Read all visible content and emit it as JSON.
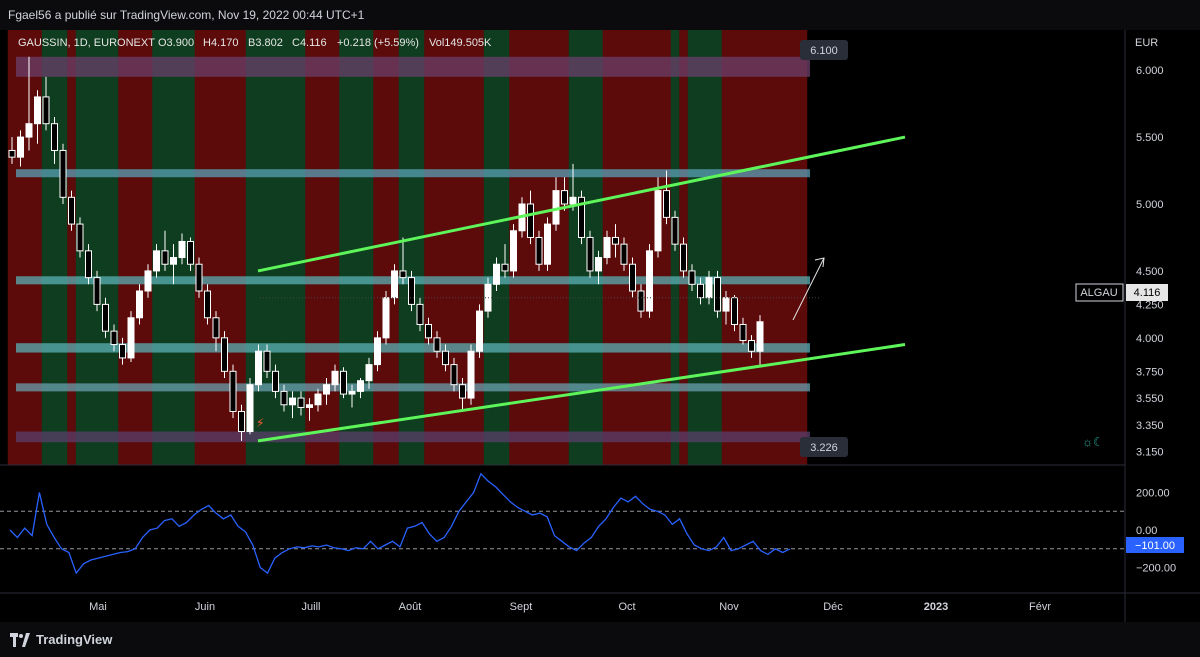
{
  "header": {
    "caption": "Fgael56 a publié sur TradingView.com, Nov 19, 2022 00:44 UTC+1"
  },
  "footer": {
    "brand": "TradingView"
  },
  "chart_data": {
    "type": "candlestick",
    "legend": {
      "symbol": "GAUSSIN, 1D, EURONEXT",
      "open": "O3.900",
      "high": "H4.170",
      "low": "B3.802",
      "close": "C4.116",
      "change": "+0.218 (+5.59%)",
      "volume": "Vol149.505K"
    },
    "currency": "EUR",
    "price_axis": {
      "ylim": [
        3.05,
        6.3
      ],
      "ticks": [
        "6.000",
        "5.500",
        "5.000",
        "4.500",
        "4.250",
        "4.000",
        "3.750",
        "3.550",
        "3.350",
        "3.150"
      ]
    },
    "price_labels": {
      "high_marker": "6.100",
      "low_marker": "3.226",
      "symbol_tag": "ALGAU",
      "last": "4.116"
    },
    "x_axis": {
      "labels": [
        "Mai",
        "Juin",
        "Juill",
        "Août",
        "Sept",
        "Oct",
        "Nov",
        "Déc",
        "2023",
        "Févr"
      ]
    },
    "oscillator": {
      "ylim": [
        -320,
        320
      ],
      "ticks": [
        "200.00",
        "0.00",
        "−200.00"
      ],
      "levels": [
        100,
        -100
      ],
      "last_label": "−101.00",
      "last_value": -101
    },
    "zones": [
      {
        "low": 5.95,
        "high": 6.1,
        "color": "#6b3f6b"
      },
      {
        "low": 5.2,
        "high": 5.26,
        "color": "#5a9fb5"
      },
      {
        "low": 4.4,
        "high": 4.46,
        "color": "#5ab0b5"
      },
      {
        "low": 3.89,
        "high": 3.96,
        "color": "#5ab0b5"
      },
      {
        "low": 3.6,
        "high": 3.66,
        "color": "#6aa0b0"
      },
      {
        "low": 3.22,
        "high": 3.3,
        "color": "#5a3f6b"
      }
    ],
    "channel": {
      "upper": [
        [
          2,
          4.5
        ],
        [
          96,
          5.5
        ]
      ],
      "lower": [
        [
          2,
          3.23
        ],
        [
          96,
          3.95
        ]
      ]
    },
    "regime_colors": {
      "bull": "#0f3d1f",
      "bear": "#5c0a0a"
    },
    "regimes": "rrrrgggrgggggrrrrgggggrrrrrrgggggggrrrrggggrrrgggrrrrrrrgggrrrrrrrggggrrrrrrrrgrggggrrrrrrrrrr",
    "series": [
      {
        "name": "price",
        "ohlc": [
          [
            5.4,
            5.5,
            5.3,
            5.35
          ],
          [
            5.35,
            5.55,
            5.28,
            5.5
          ],
          [
            5.5,
            6.1,
            5.4,
            5.6
          ],
          [
            5.6,
            5.85,
            5.45,
            5.8
          ],
          [
            5.8,
            5.95,
            5.55,
            5.6
          ],
          [
            5.6,
            5.65,
            5.3,
            5.4
          ],
          [
            5.4,
            5.45,
            5.0,
            5.05
          ],
          [
            5.05,
            5.1,
            4.8,
            4.85
          ],
          [
            4.85,
            4.9,
            4.6,
            4.65
          ],
          [
            4.65,
            4.7,
            4.4,
            4.45
          ],
          [
            4.45,
            4.5,
            4.2,
            4.25
          ],
          [
            4.25,
            4.3,
            4.0,
            4.05
          ],
          [
            4.05,
            4.1,
            3.9,
            3.95
          ],
          [
            3.95,
            4.0,
            3.8,
            3.85
          ],
          [
            3.85,
            4.2,
            3.82,
            4.15
          ],
          [
            4.15,
            4.4,
            4.1,
            4.35
          ],
          [
            4.35,
            4.55,
            4.3,
            4.5
          ],
          [
            4.5,
            4.7,
            4.45,
            4.65
          ],
          [
            4.65,
            4.8,
            4.5,
            4.55
          ],
          [
            4.55,
            4.7,
            4.4,
            4.6
          ],
          [
            4.6,
            4.78,
            4.55,
            4.72
          ],
          [
            4.72,
            4.75,
            4.5,
            4.55
          ],
          [
            4.55,
            4.6,
            4.3,
            4.35
          ],
          [
            4.35,
            4.4,
            4.1,
            4.15
          ],
          [
            4.15,
            4.2,
            3.9,
            4.0
          ],
          [
            4.0,
            4.05,
            3.7,
            3.75
          ],
          [
            3.75,
            3.8,
            3.4,
            3.45
          ],
          [
            3.45,
            3.5,
            3.23,
            3.3
          ],
          [
            3.3,
            3.7,
            3.28,
            3.65
          ],
          [
            3.65,
            3.95,
            3.6,
            3.9
          ],
          [
            3.9,
            3.95,
            3.7,
            3.75
          ],
          [
            3.75,
            3.8,
            3.55,
            3.6
          ],
          [
            3.6,
            3.65,
            3.45,
            3.5
          ],
          [
            3.5,
            3.6,
            3.4,
            3.55
          ],
          [
            3.55,
            3.6,
            3.42,
            3.48
          ],
          [
            3.48,
            3.55,
            3.38,
            3.5
          ],
          [
            3.5,
            3.62,
            3.45,
            3.58
          ],
          [
            3.58,
            3.7,
            3.5,
            3.65
          ],
          [
            3.65,
            3.8,
            3.6,
            3.75
          ],
          [
            3.75,
            3.78,
            3.55,
            3.58
          ],
          [
            3.58,
            3.65,
            3.48,
            3.6
          ],
          [
            3.6,
            3.7,
            3.55,
            3.68
          ],
          [
            3.68,
            3.85,
            3.62,
            3.8
          ],
          [
            3.8,
            4.05,
            3.75,
            4.0
          ],
          [
            4.0,
            4.35,
            3.95,
            4.3
          ],
          [
            4.3,
            4.55,
            4.25,
            4.5
          ],
          [
            4.5,
            4.75,
            4.4,
            4.45
          ],
          [
            4.45,
            4.5,
            4.2,
            4.25
          ],
          [
            4.25,
            4.3,
            4.05,
            4.1
          ],
          [
            4.1,
            4.15,
            3.95,
            4.0
          ],
          [
            4.0,
            4.05,
            3.85,
            3.9
          ],
          [
            3.9,
            3.95,
            3.75,
            3.8
          ],
          [
            3.8,
            3.85,
            3.6,
            3.65
          ],
          [
            3.65,
            3.7,
            3.45,
            3.55
          ],
          [
            3.55,
            3.95,
            3.5,
            3.9
          ],
          [
            3.9,
            4.25,
            3.85,
            4.2
          ],
          [
            4.2,
            4.45,
            4.15,
            4.4
          ],
          [
            4.4,
            4.6,
            4.35,
            4.55
          ],
          [
            4.55,
            4.7,
            4.45,
            4.5
          ],
          [
            4.5,
            4.85,
            4.45,
            4.8
          ],
          [
            4.8,
            5.05,
            4.75,
            5.0
          ],
          [
            5.0,
            5.1,
            4.7,
            4.75
          ],
          [
            4.75,
            4.8,
            4.5,
            4.55
          ],
          [
            4.55,
            4.9,
            4.5,
            4.85
          ],
          [
            4.85,
            5.2,
            4.8,
            5.1
          ],
          [
            5.1,
            5.2,
            4.95,
            5.0
          ],
          [
            5.0,
            5.3,
            4.95,
            5.05
          ],
          [
            5.05,
            5.1,
            4.7,
            4.75
          ],
          [
            4.75,
            4.8,
            4.45,
            4.5
          ],
          [
            4.5,
            4.65,
            4.4,
            4.6
          ],
          [
            4.6,
            4.8,
            4.55,
            4.75
          ],
          [
            4.75,
            4.85,
            4.6,
            4.7
          ],
          [
            4.7,
            4.75,
            4.5,
            4.55
          ],
          [
            4.55,
            4.6,
            4.3,
            4.35
          ],
          [
            4.35,
            4.4,
            4.15,
            4.2
          ],
          [
            4.2,
            4.7,
            4.15,
            4.65
          ],
          [
            4.65,
            5.2,
            4.6,
            5.1
          ],
          [
            5.1,
            5.25,
            4.85,
            4.9
          ],
          [
            4.9,
            4.95,
            4.65,
            4.7
          ],
          [
            4.7,
            4.75,
            4.45,
            4.5
          ],
          [
            4.5,
            4.55,
            4.35,
            4.4
          ],
          [
            4.4,
            4.45,
            4.25,
            4.3
          ],
          [
            4.3,
            4.5,
            4.25,
            4.45
          ],
          [
            4.45,
            4.5,
            4.15,
            4.2
          ],
          [
            4.2,
            4.35,
            4.1,
            4.3
          ],
          [
            4.3,
            4.32,
            4.05,
            4.1
          ],
          [
            4.1,
            4.15,
            3.95,
            3.98
          ],
          [
            3.98,
            4.02,
            3.85,
            3.9
          ],
          [
            3.9,
            4.17,
            3.8,
            4.12
          ]
        ]
      },
      {
        "name": "oscillator",
        "values": [
          0,
          -40,
          10,
          -30,
          200,
          30,
          -40,
          -100,
          -120,
          -230,
          -180,
          -160,
          -150,
          -140,
          -130,
          -120,
          -115,
          -100,
          -40,
          0,
          10,
          50,
          60,
          20,
          40,
          80,
          110,
          130,
          90,
          60,
          80,
          20,
          -10,
          -80,
          -200,
          -230,
          -150,
          -120,
          -100,
          -90,
          -95,
          -85,
          -90,
          -80,
          -95,
          -100,
          -110,
          -95,
          -100,
          -60,
          -100,
          -80,
          -60,
          -90,
          10,
          20,
          40,
          -20,
          -60,
          -40,
          20,
          100,
          150,
          200,
          300,
          260,
          230,
          190,
          150,
          120,
          100,
          80,
          90,
          70,
          -30,
          -60,
          -90,
          -110,
          -70,
          -40,
          20,
          60,
          120,
          170,
          150,
          180,
          140,
          110,
          100,
          80,
          30,
          60,
          -20,
          -80,
          -100,
          -110,
          -90,
          -40,
          -110,
          -100,
          -80,
          -60,
          -110,
          -130,
          -100,
          -120,
          -101
        ]
      }
    ]
  }
}
